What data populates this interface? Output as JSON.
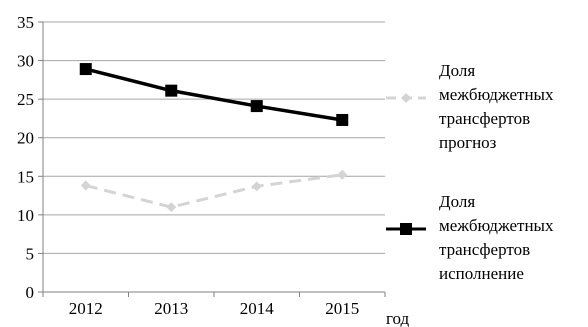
{
  "chart_data": {
    "type": "line",
    "categories": [
      "2012",
      "2013",
      "2014",
      "2015"
    ],
    "x_unit_label": "год",
    "ylim": [
      0,
      35
    ],
    "y_ticks": [
      0,
      5,
      10,
      15,
      20,
      25,
      30,
      35
    ],
    "grid": true,
    "legend_position": "right",
    "series": [
      {
        "name": [
          "Доля",
          "межбюджетных",
          "трансфертов",
          "прогноз"
        ],
        "values": [
          13.8,
          11.0,
          13.7,
          15.2
        ],
        "color": "#d4d4d4",
        "line_style": "dashed",
        "marker": "diamond"
      },
      {
        "name": [
          "Доля",
          "межбюджетных",
          "трансфертов",
          "исполнение"
        ],
        "values": [
          28.9,
          26.1,
          24.1,
          22.3
        ],
        "color": "#000000",
        "line_style": "solid",
        "marker": "square"
      }
    ]
  }
}
